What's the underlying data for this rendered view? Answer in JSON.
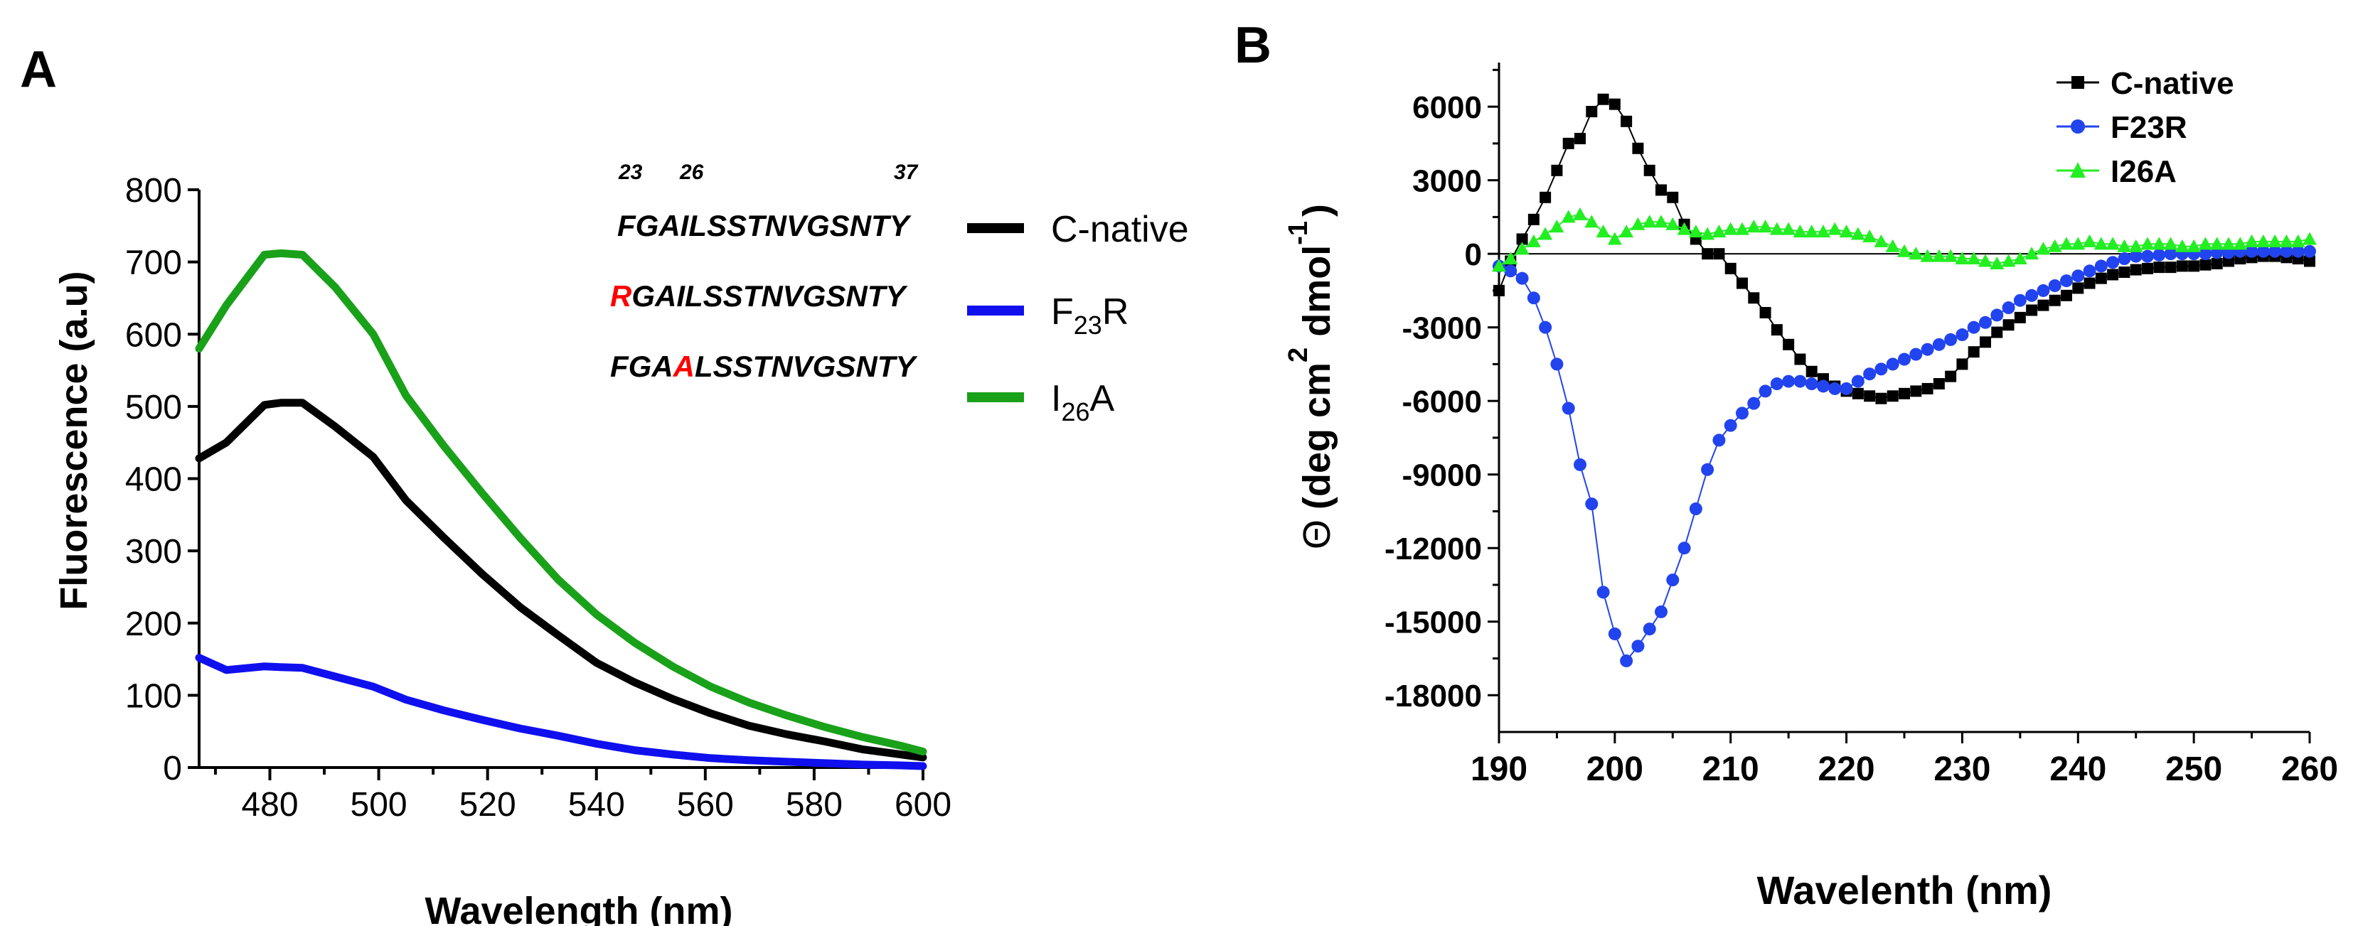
{
  "panels": {
    "a": {
      "letter": "A"
    },
    "b": {
      "letter": "B"
    }
  },
  "chart_data": [
    {
      "type": "line",
      "panel": "A",
      "title": "",
      "xlabel": "Wavelength (nm)",
      "ylabel": "Fluorescence (a.u)",
      "xlim": [
        467,
        600
      ],
      "ylim": [
        0,
        800
      ],
      "xticks": [
        480,
        500,
        520,
        540,
        560,
        580,
        600
      ],
      "yticks": [
        0,
        100,
        200,
        300,
        400,
        500,
        600,
        700,
        800
      ],
      "grid": false,
      "legend_position": "right",
      "x": [
        467,
        472,
        479,
        482,
        486,
        492,
        499,
        505,
        512,
        519,
        526,
        533,
        540,
        547,
        554,
        561,
        568,
        575,
        582,
        589,
        596,
        600
      ],
      "series": [
        {
          "name": "C-native",
          "color": "#000000",
          "values": [
            428,
            450,
            502,
            505,
            505,
            472,
            430,
            370,
            318,
            268,
            222,
            183,
            145,
            118,
            95,
            75,
            58,
            46,
            36,
            25,
            18,
            14
          ]
        },
        {
          "name": "F23R",
          "color": "#1010ee",
          "values": [
            152,
            135,
            140,
            139,
            138,
            126,
            112,
            94,
            79,
            66,
            54,
            44,
            33,
            24,
            18,
            13,
            10,
            8,
            6,
            4,
            3,
            2
          ]
        },
        {
          "name": "I26A",
          "color": "#1aa11a",
          "values": [
            580,
            640,
            710,
            712,
            710,
            665,
            600,
            515,
            445,
            380,
            318,
            260,
            212,
            173,
            140,
            112,
            90,
            72,
            56,
            42,
            30,
            22
          ]
        }
      ],
      "legend": [
        {
          "main": "C-native",
          "sub": "",
          "tail": ""
        },
        {
          "main": "F",
          "sub": "23",
          "tail": "R"
        },
        {
          "main": "I",
          "sub": "26",
          "tail": "A"
        }
      ],
      "sequence_inset": {
        "position_labels": [
          "23",
          "26",
          "37"
        ],
        "rows": [
          {
            "prefix": "FGAILSSTNVGSNTY",
            "mutation": "",
            "suffix": ""
          },
          {
            "prefix": "",
            "mutation": "R",
            "suffix": "GAILSSTNVGSNTY"
          },
          {
            "prefix": "FGA",
            "mutation": "A",
            "suffix": "LSSTNVGSNTY"
          }
        ],
        "mutation_color": "#ff0000"
      }
    },
    {
      "type": "scatter",
      "panel": "B",
      "title": "",
      "xlabel": "Wavelenth (nm)",
      "ylabel": {
        "symbol": "Θ",
        "part1": "(deg cm",
        "sup1": "2",
        "part2": " dmol",
        "sup2": "-1",
        "part3": ")"
      },
      "xlim": [
        190,
        260
      ],
      "ylim": [
        -19500,
        7800
      ],
      "xticks": [
        190,
        200,
        210,
        220,
        230,
        240,
        250,
        260
      ],
      "yticks": [
        6000,
        3000,
        0,
        -3000,
        -6000,
        -9000,
        -12000,
        -15000,
        -18000
      ],
      "grid": false,
      "zero_line": true,
      "legend_position": "top-right",
      "series": [
        {
          "name": "C-native",
          "color": "#000000",
          "marker": "square",
          "x": [
            190,
            191,
            192,
            193,
            194,
            195,
            196,
            197,
            198,
            199,
            200,
            201,
            202,
            203,
            204,
            205,
            206,
            207,
            208,
            209,
            210,
            211,
            212,
            213,
            214,
            215,
            216,
            217,
            218,
            219,
            220,
            221,
            222,
            223,
            224,
            225,
            226,
            227,
            228,
            229,
            230,
            231,
            232,
            233,
            234,
            235,
            236,
            237,
            238,
            239,
            240,
            241,
            242,
            243,
            244,
            245,
            246,
            247,
            248,
            249,
            250,
            251,
            252,
            253,
            254,
            255,
            256,
            257,
            258,
            259,
            260
          ],
          "y": [
            -1500,
            -300,
            600,
            1400,
            2300,
            3400,
            4500,
            4700,
            5800,
            6300,
            6100,
            5400,
            4300,
            3400,
            2600,
            2300,
            1200,
            600,
            0,
            0,
            -600,
            -1200,
            -1800,
            -2400,
            -3100,
            -3700,
            -4300,
            -4800,
            -5100,
            -5400,
            -5600,
            -5700,
            -5800,
            -5900,
            -5800,
            -5700,
            -5600,
            -5500,
            -5300,
            -5000,
            -4500,
            -4000,
            -3600,
            -3200,
            -2900,
            -2600,
            -2300,
            -2100,
            -1900,
            -1700,
            -1400,
            -1200,
            -1000,
            -850,
            -750,
            -650,
            -600,
            -550,
            -550,
            -500,
            -500,
            -450,
            -400,
            -300,
            -200,
            -150,
            -100,
            -100,
            -150,
            -200,
            -300
          ]
        },
        {
          "name": "F23R",
          "color": "#2244ee",
          "marker": "circle",
          "x": [
            190,
            191,
            192,
            193,
            194,
            195,
            196,
            197,
            198,
            199,
            200,
            201,
            202,
            203,
            204,
            205,
            206,
            207,
            208,
            209,
            210,
            211,
            212,
            213,
            214,
            215,
            216,
            217,
            218,
            219,
            220,
            221,
            222,
            223,
            224,
            225,
            226,
            227,
            228,
            229,
            230,
            231,
            232,
            233,
            234,
            235,
            236,
            237,
            238,
            239,
            240,
            241,
            242,
            243,
            244,
            245,
            246,
            247,
            248,
            249,
            250,
            251,
            252,
            253,
            254,
            255,
            256,
            257,
            258,
            259,
            260
          ],
          "y": [
            -500,
            -700,
            -1000,
            -1800,
            -3000,
            -4500,
            -6300,
            -8600,
            -10200,
            -13800,
            -15500,
            -16600,
            -16000,
            -15300,
            -14600,
            -13300,
            -12000,
            -10400,
            -8800,
            -7600,
            -7000,
            -6500,
            -6100,
            -5600,
            -5300,
            -5200,
            -5200,
            -5300,
            -5400,
            -5500,
            -5500,
            -5200,
            -4900,
            -4700,
            -4500,
            -4300,
            -4100,
            -3900,
            -3700,
            -3500,
            -3300,
            -3000,
            -2800,
            -2500,
            -2200,
            -1900,
            -1700,
            -1500,
            -1300,
            -1100,
            -900,
            -700,
            -500,
            -350,
            -200,
            -100,
            -100,
            -50,
            0,
            0,
            0,
            0,
            50,
            50,
            100,
            100,
            100,
            100,
            100,
            100,
            100
          ]
        },
        {
          "name": "I26A",
          "color": "#22ee22",
          "marker": "triangle",
          "x": [
            190,
            191,
            192,
            193,
            194,
            195,
            196,
            197,
            198,
            199,
            200,
            201,
            202,
            203,
            204,
            205,
            206,
            207,
            208,
            209,
            210,
            211,
            212,
            213,
            214,
            215,
            216,
            217,
            218,
            219,
            220,
            221,
            222,
            223,
            224,
            225,
            226,
            227,
            228,
            229,
            230,
            231,
            232,
            233,
            234,
            235,
            236,
            237,
            238,
            239,
            240,
            241,
            242,
            243,
            244,
            245,
            246,
            247,
            248,
            249,
            250,
            251,
            252,
            253,
            254,
            255,
            256,
            257,
            258,
            259,
            260
          ],
          "y": [
            -500,
            -200,
            200,
            500,
            800,
            1100,
            1500,
            1600,
            1300,
            900,
            600,
            900,
            1200,
            1300,
            1300,
            1200,
            1000,
            900,
            800,
            900,
            1000,
            1000,
            1100,
            1100,
            1000,
            1000,
            900,
            900,
            900,
            1000,
            900,
            800,
            700,
            500,
            300,
            100,
            0,
            -100,
            -100,
            -100,
            -200,
            -200,
            -300,
            -400,
            -300,
            -200,
            0,
            200,
            300,
            400,
            400,
            500,
            400,
            400,
            300,
            300,
            400,
            400,
            400,
            300,
            300,
            400,
            400,
            400,
            400,
            500,
            500,
            500,
            500,
            500,
            600
          ]
        }
      ]
    }
  ]
}
